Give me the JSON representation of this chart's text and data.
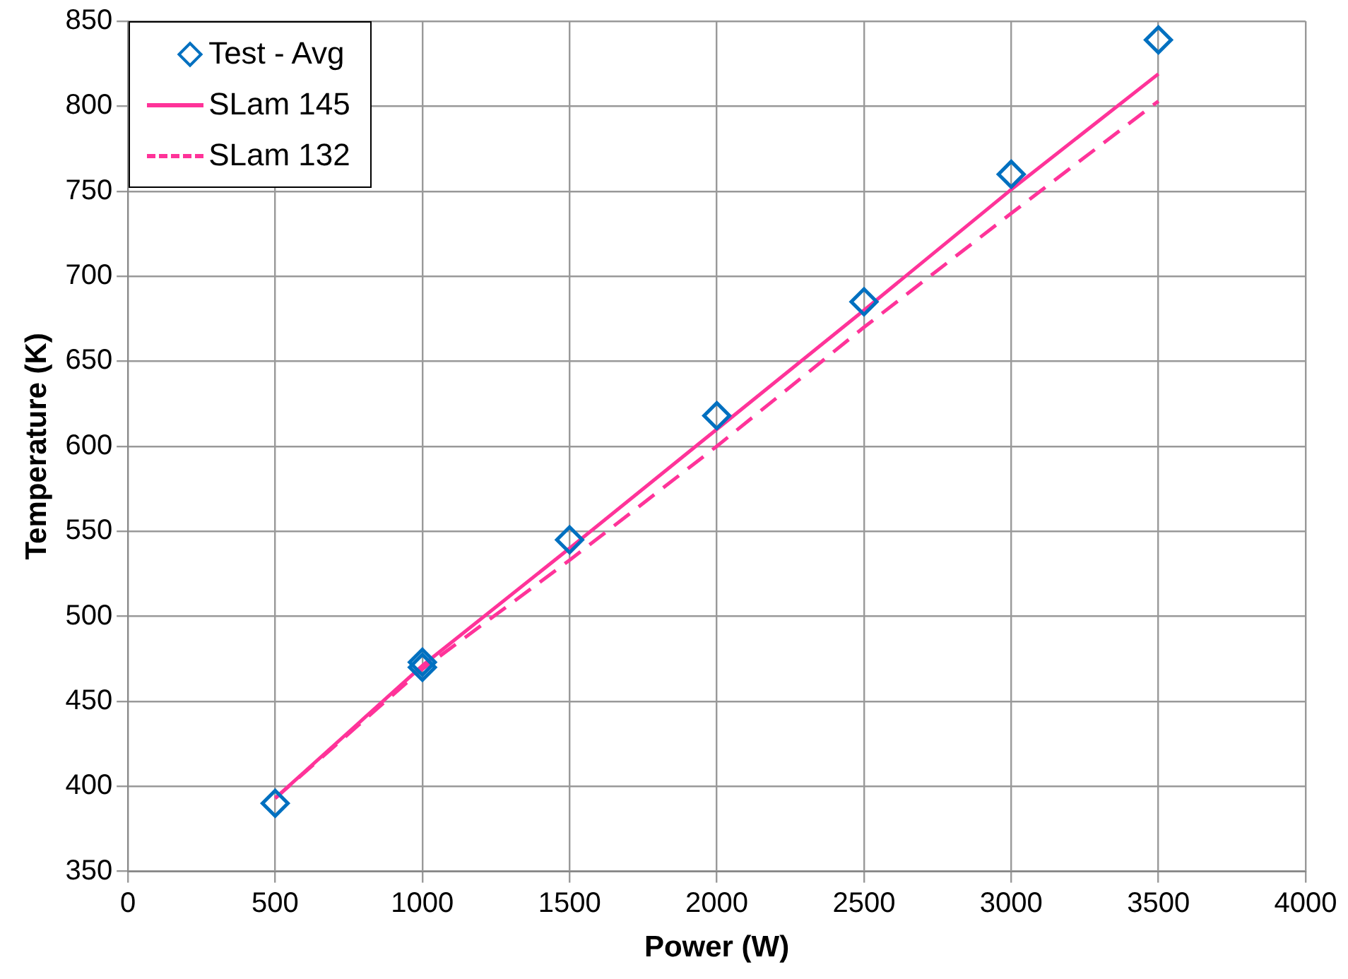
{
  "chart_data": {
    "type": "line",
    "xlabel": "Power (W)",
    "ylabel": "Temperature (K)",
    "xlim": [
      0,
      4000
    ],
    "xticks": [
      0,
      500,
      1000,
      1500,
      2000,
      2500,
      3000,
      3500,
      4000
    ],
    "ylim": [
      350,
      850
    ],
    "yticks": [
      350,
      400,
      450,
      500,
      550,
      600,
      650,
      700,
      750,
      800,
      850
    ],
    "grid": true,
    "legend": "top left",
    "series": [
      {
        "name": "Test - Avg",
        "type": "scatter",
        "marker": "diamond",
        "color": "#0070c0",
        "x": [
          500,
          1000,
          1000,
          1500,
          2000,
          2500,
          3000,
          3500
        ],
        "values": [
          390,
          473,
          470,
          545,
          618,
          685,
          760,
          839
        ]
      },
      {
        "name": "SLam 145",
        "marker": "none",
        "line_style": "solid",
        "color": "#ff3399",
        "x": [
          500,
          1000,
          1500,
          2000,
          2500,
          3000,
          3500
        ],
        "values": [
          393,
          471,
          540,
          610,
          680,
          751,
          819
        ]
      },
      {
        "name": "SLam 132",
        "marker": "none",
        "line_style": "dashed",
        "color": "#ff3399",
        "x": [
          500,
          1000,
          1500,
          2000,
          2500,
          3000,
          3500
        ],
        "values": [
          393,
          469,
          533,
          600,
          670,
          737,
          803
        ]
      }
    ]
  }
}
